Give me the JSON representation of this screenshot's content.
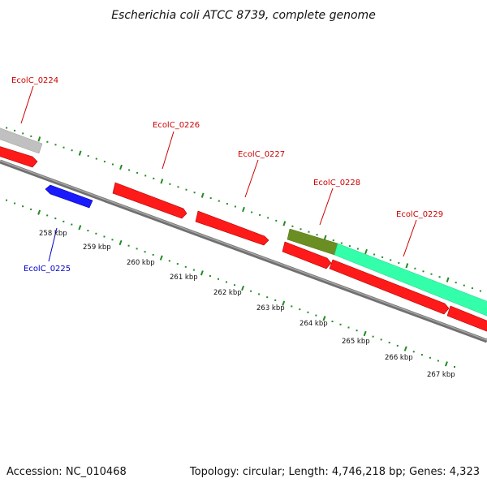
{
  "title": "Escherichia coli ATCC 8739, complete genome",
  "footer": {
    "accession": "Accession: NC_010468",
    "topology": "Topology: circular; Length: 4,746,218 bp; Genes: 4,323"
  },
  "colors": {
    "forward_gene": "#ff0000",
    "reverse_gene": "#0000ff",
    "label_forward": "#cc0000",
    "label_reverse": "#0000cc",
    "backbone": "#7f7f7f",
    "feature_grey": "#bfbfbf",
    "feature_olive": "#6b8e23",
    "feature_aqua": "#33ffaa",
    "gc_dots": "#228b22"
  },
  "genes": [
    {
      "label": "EcolC_0224",
      "strand": "forward"
    },
    {
      "label": "EcolC_0225",
      "strand": "reverse"
    },
    {
      "label": "EcolC_0226",
      "strand": "forward"
    },
    {
      "label": "EcolC_0227",
      "strand": "forward"
    },
    {
      "label": "EcolC_0228",
      "strand": "forward"
    },
    {
      "label": "EcolC_0229",
      "strand": "forward"
    }
  ],
  "scale_labels": [
    "258 kbp",
    "259 kbp",
    "260 kbp",
    "261 kbp",
    "262 kbp",
    "263 kbp",
    "264 kbp",
    "265 kbp",
    "266 kbp",
    "267 kbp"
  ]
}
